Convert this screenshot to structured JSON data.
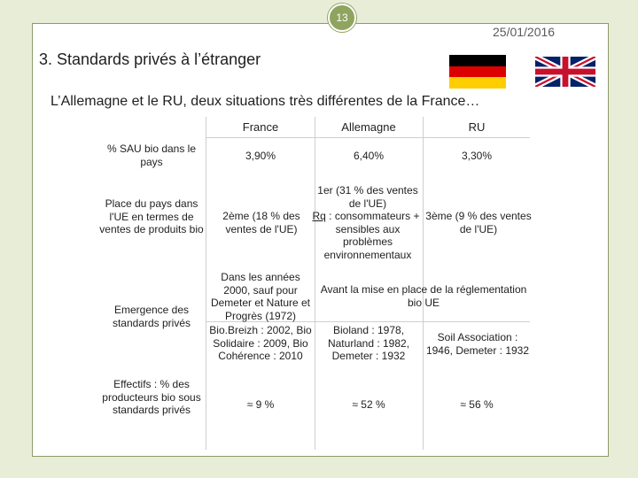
{
  "slide": {
    "number": "13",
    "date": "25/01/2016",
    "title": "3. Standards privés à l’étranger",
    "subtitle": "L’Allemagne et le RU, deux situations très différentes de la France…",
    "flags": [
      "germany-flag",
      "uk-flag"
    ]
  },
  "table": {
    "columns": [
      "France",
      "Allemagne",
      "RU"
    ],
    "rows": [
      {
        "label": "% SAU bio dans le pays",
        "france": "3,90%",
        "allemagne": "6,40%",
        "ru": "3,30%"
      },
      {
        "label": "Place du pays dans l'UE en termes de ventes de produits bio",
        "france": "2ème (18 % des ventes de l'UE)",
        "allemagne_lines": [
          "1er (31 % des ventes",
          "de l'UE)",
          "Rq : consommateurs +",
          "sensibles aux",
          "problèmes",
          "environnementaux"
        ],
        "ru": "3ème (9 % des ventes de l'UE)"
      },
      {
        "label": "Emergence des standards privés",
        "france_a": "Dans les années 2000, sauf pour Demeter et Nature et Progrès (1972)",
        "merged_de_ru": "Avant la mise en place de la réglementation bio UE",
        "france_b": "Bio.Breizh : 2002, Bio Solidaire : 2009, Bio Cohérence : 2010",
        "allemagne_b": "Bioland : 1978, Naturland : 1982, Demeter : 1932",
        "ru_b": "Soil Association : 1946, Demeter : 1932"
      },
      {
        "label": "Effectifs : % des producteurs bio sous standards privés",
        "france": "≈ 9 %",
        "allemagne": "≈ 52 %",
        "ru": "≈ 56 %"
      }
    ]
  }
}
